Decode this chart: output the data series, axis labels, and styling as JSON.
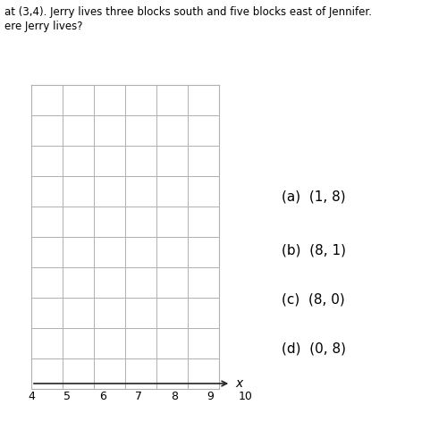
{
  "title_line1": "at (3,4). Jerry lives three blocks south and five blocks east of Jennifer.",
  "title_line2": "ere Jerry lives?",
  "answer_choices": [
    "(a)  (1, 8)",
    "(b)  (8, 1)",
    "(c)  (8, 0)",
    "(d)  (0, 8)"
  ],
  "x_min": 4,
  "x_max": 10,
  "x_label": "x",
  "grid_rows": 10,
  "grid_cols": 6,
  "background_color": "#ffffff",
  "grid_color": "#b0b0b0",
  "axis_color": "#222222",
  "text_color": "#000000",
  "font_size_text": 8.5,
  "font_size_choices": 11,
  "font_size_tick": 9
}
